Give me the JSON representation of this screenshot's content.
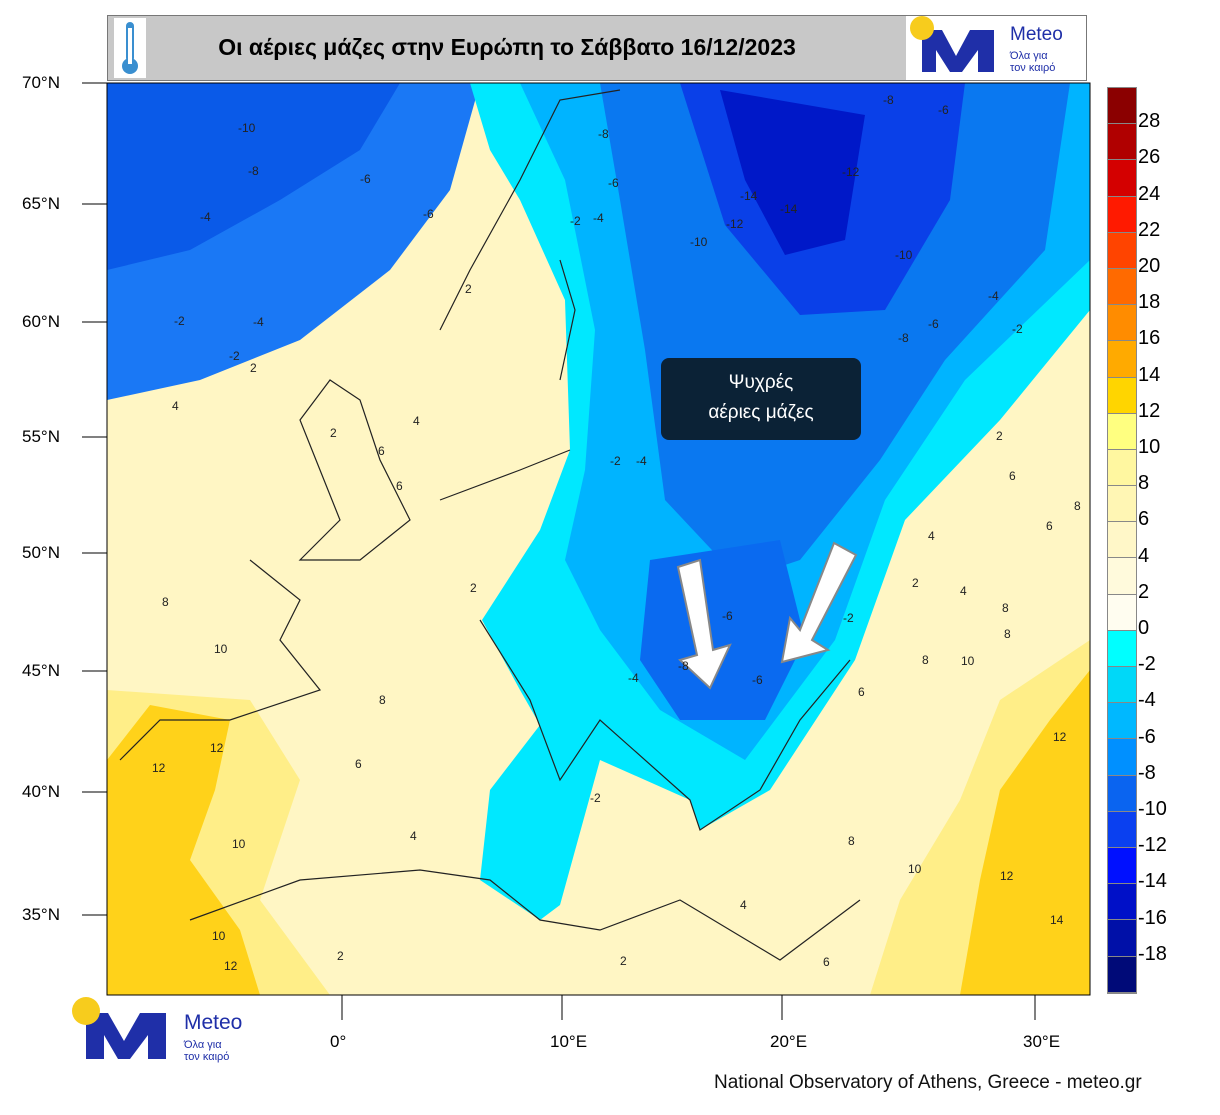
{
  "header": {
    "title": "Οι αέριες μάζες στην Ευρώπη το Σάββατο 16/12/2023",
    "thermometer_icon": "thermometer-icon",
    "logo": {
      "name": "Meteo",
      "tagline_line1": "Όλα για",
      "tagline_line2": "τον καιρό"
    }
  },
  "map": {
    "latitude_labels": [
      "70°N",
      "65°N",
      "60°N",
      "55°N",
      "50°N",
      "45°N",
      "40°N",
      "35°N"
    ],
    "longitude_labels": [
      "0°",
      "10°E",
      "20°E",
      "30°E"
    ],
    "contour_labels": [
      "-10",
      "-8",
      "-6",
      "-4",
      "-2",
      "-6",
      "-4",
      "-2",
      "2",
      "-8",
      "-6",
      "-8",
      "-14",
      "-14",
      "-12",
      "-10",
      "-12",
      "-10",
      "-6",
      "-4",
      "-2",
      "-8",
      "-6",
      "-4",
      "-2",
      "2",
      "4",
      "6",
      "2",
      "4",
      "6",
      "8",
      "10",
      "8",
      "12",
      "10",
      "12",
      "10",
      "2",
      "2",
      "4",
      "6",
      "-2",
      "-4",
      "-6",
      "-8",
      "-6",
      "-4",
      "-2",
      "4",
      "6",
      "8",
      "10",
      "8",
      "12",
      "14",
      "6",
      "4",
      "2",
      "12",
      "8",
      "6",
      "-2",
      "8",
      "10",
      "4",
      "6",
      "2",
      "8",
      "12",
      "2"
    ],
    "annotation": {
      "line1": "Ψυχρές",
      "line2": "αέριες μάζες"
    },
    "arrows": [
      "arrow-down-icon",
      "arrow-down-left-icon"
    ],
    "colors": {
      "cold_deep": "#0010c0",
      "cold": "#0a6af0",
      "cool": "#00aaff",
      "near_zero": "#00e8ff",
      "mild": "#fff6c4",
      "warm": "#ffe866",
      "hot": "#ffcc00"
    }
  },
  "colorbar": {
    "labels": [
      "28",
      "26",
      "24",
      "22",
      "20",
      "18",
      "16",
      "14",
      "12",
      "10",
      "8",
      "6",
      "4",
      "2",
      "0",
      "-2",
      "-4",
      "-6",
      "-8",
      "-10",
      "-12",
      "-14",
      "-16",
      "-18"
    ],
    "colors": [
      "#8b0000",
      "#b00000",
      "#d40000",
      "#ff1a00",
      "#ff4400",
      "#ff6a00",
      "#ff8c00",
      "#ffaa00",
      "#ffd500",
      "#ffff80",
      "#fff7a0",
      "#fff6b4",
      "#fff7c8",
      "#fffadc",
      "#fffdf0",
      "#00ffff",
      "#00d8f8",
      "#00b8ff",
      "#0090ff",
      "#0a64f0",
      "#0a40f0",
      "#0010ff",
      "#0010c8",
      "#0010a8",
      "#000a78"
    ]
  },
  "footer": {
    "logo": {
      "name": "Meteo",
      "tagline_line1": "Όλα για",
      "tagline_line2": "τον καιρό"
    },
    "credit": "National Observatory of Athens, Greece - meteo.gr"
  }
}
